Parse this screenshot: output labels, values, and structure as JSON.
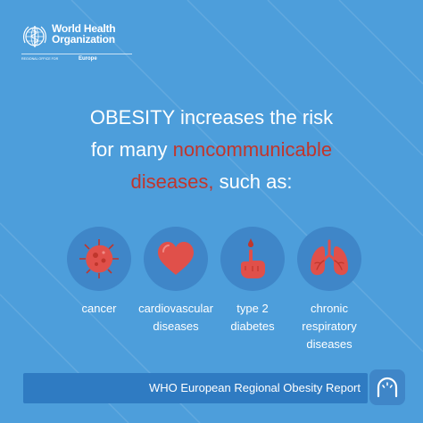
{
  "brand": {
    "name_line1": "World Health",
    "name_line2": "Organization",
    "office_label": "REGIONAL OFFICE FOR",
    "region": "Europe"
  },
  "headline": {
    "line1": "OBESITY increases the risk",
    "line2_prefix": "for many ",
    "line2_accent": "noncommunicable",
    "line3_accent": "diseases,",
    "line3_suffix": " such as:"
  },
  "diseases": [
    {
      "icon": "cancer-cell-icon",
      "label_line1": "cancer",
      "label_line2": "",
      "label_line3": ""
    },
    {
      "icon": "heart-icon",
      "label_line1": "cardiovascular",
      "label_line2": "diseases",
      "label_line3": ""
    },
    {
      "icon": "finger-prick-icon",
      "label_line1": "type 2",
      "label_line2": "diabetes",
      "label_line3": ""
    },
    {
      "icon": "lungs-icon",
      "label_line1": "chronic",
      "label_line2": "respiratory",
      "label_line3": "diseases"
    }
  ],
  "footer": {
    "report_title": "WHO European Regional Obesity Report"
  },
  "colors": {
    "background": "#4d9edb",
    "accent_red": "#c0362c",
    "icon_circle": "#3f86c8",
    "footer_bar": "#2f7bc2",
    "icon_fill": "#e0504a"
  }
}
